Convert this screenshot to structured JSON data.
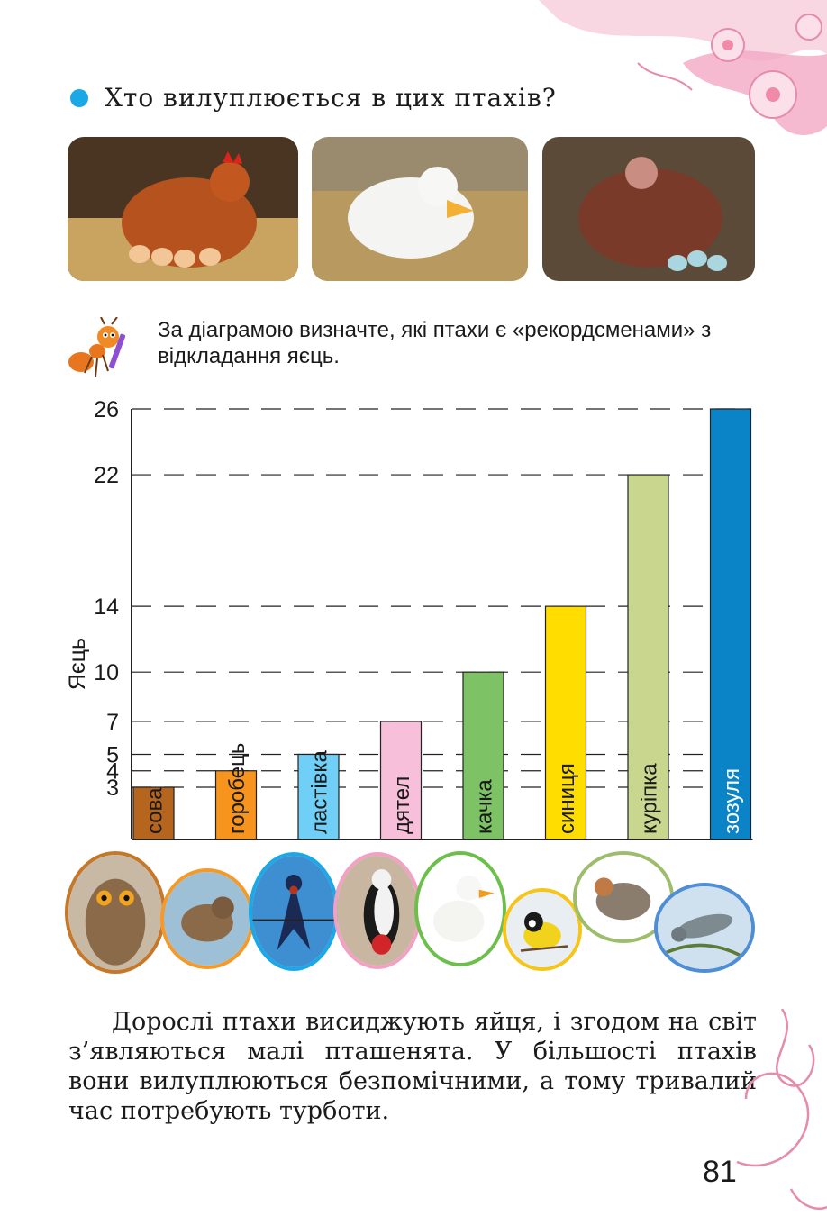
{
  "question": "Хто вилуплюється в цих птахів?",
  "task": "За діаграмою визначте, які птахи є «рекордсме­нами» з відкладання яєць.",
  "chart_data": {
    "type": "bar",
    "ylabel": "Яєць",
    "yticks": [
      3,
      4,
      5,
      7,
      10,
      14,
      22,
      26
    ],
    "categories": [
      "сова",
      "горобець",
      "ластівка",
      "дятел",
      "качка",
      "синиця",
      "курiпка",
      "зозуля"
    ],
    "values": [
      3,
      4,
      5,
      7,
      10,
      14,
      22,
      26
    ],
    "colors": [
      "#b5651d",
      "#f7941d",
      "#6fcff6",
      "#f7bfd9",
      "#7dc366",
      "#ffdd00",
      "#c8d68e",
      "#0a84c7"
    ],
    "grid": "dashed"
  },
  "body_text": "Дорослі птахи висиджують яйця, і згодом на світ з’являються малі пташенята. У більшості птахів вони вилуплюються безпомічними, а тому тривалий час потребують турботи.",
  "page_number": "81",
  "colors": {
    "accent": "#1aa9e6",
    "deco": "#f2a9c4"
  },
  "photos": [
    "hen-on-eggs",
    "duck-on-nest",
    "turkey-on-eggs"
  ],
  "birds": [
    "owl",
    "sparrow",
    "swallow",
    "woodpecker",
    "duck",
    "tit",
    "partridge",
    "cuckoo"
  ]
}
